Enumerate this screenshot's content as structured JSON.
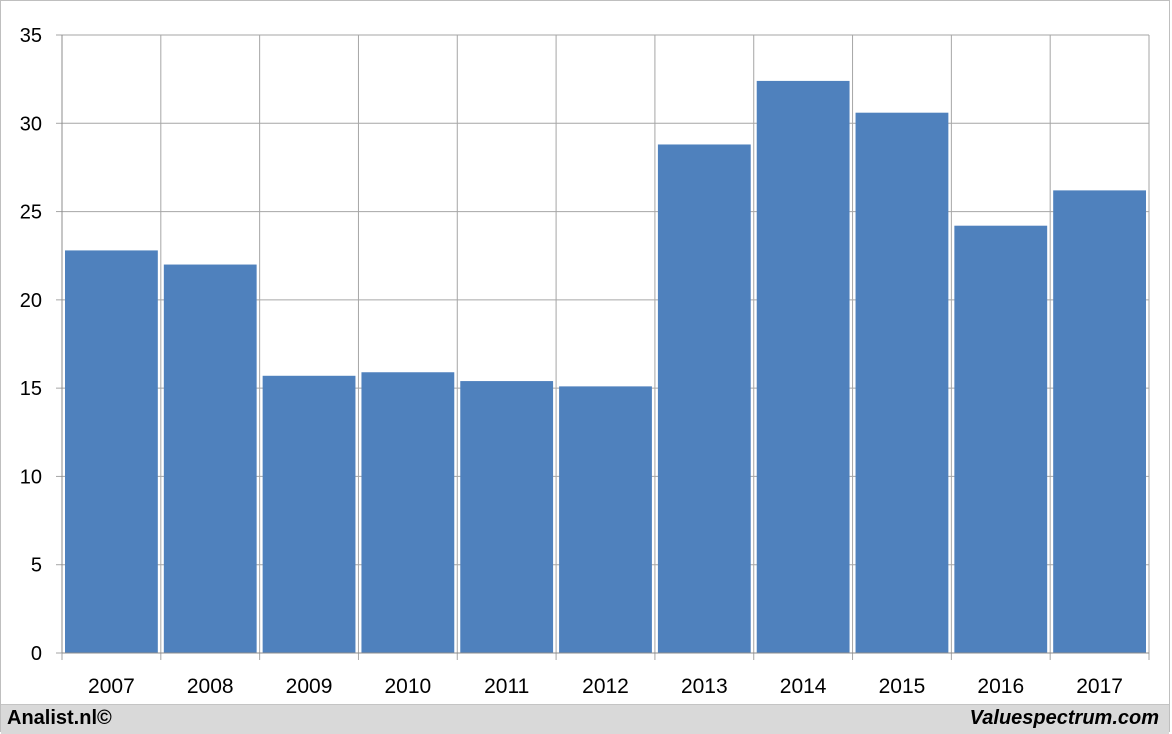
{
  "chart_data": {
    "type": "bar",
    "categories": [
      "2007",
      "2008",
      "2009",
      "2010",
      "2011",
      "2012",
      "2013",
      "2014",
      "2015",
      "2016",
      "2017"
    ],
    "values": [
      22.8,
      22.0,
      15.7,
      15.9,
      15.4,
      15.1,
      28.8,
      32.4,
      30.6,
      24.2,
      26.2
    ],
    "yticks": [
      "0",
      "5",
      "10",
      "15",
      "20",
      "25",
      "30",
      "35"
    ],
    "ylim": [
      0,
      35
    ],
    "grid": true,
    "bar_color": "#4f81bd",
    "grid_color": "#a6a6a6"
  },
  "footer": {
    "left_text": "Analist.nl©",
    "right_text": "Valuespectrum.com"
  },
  "footer_color": "#d9d9d9"
}
